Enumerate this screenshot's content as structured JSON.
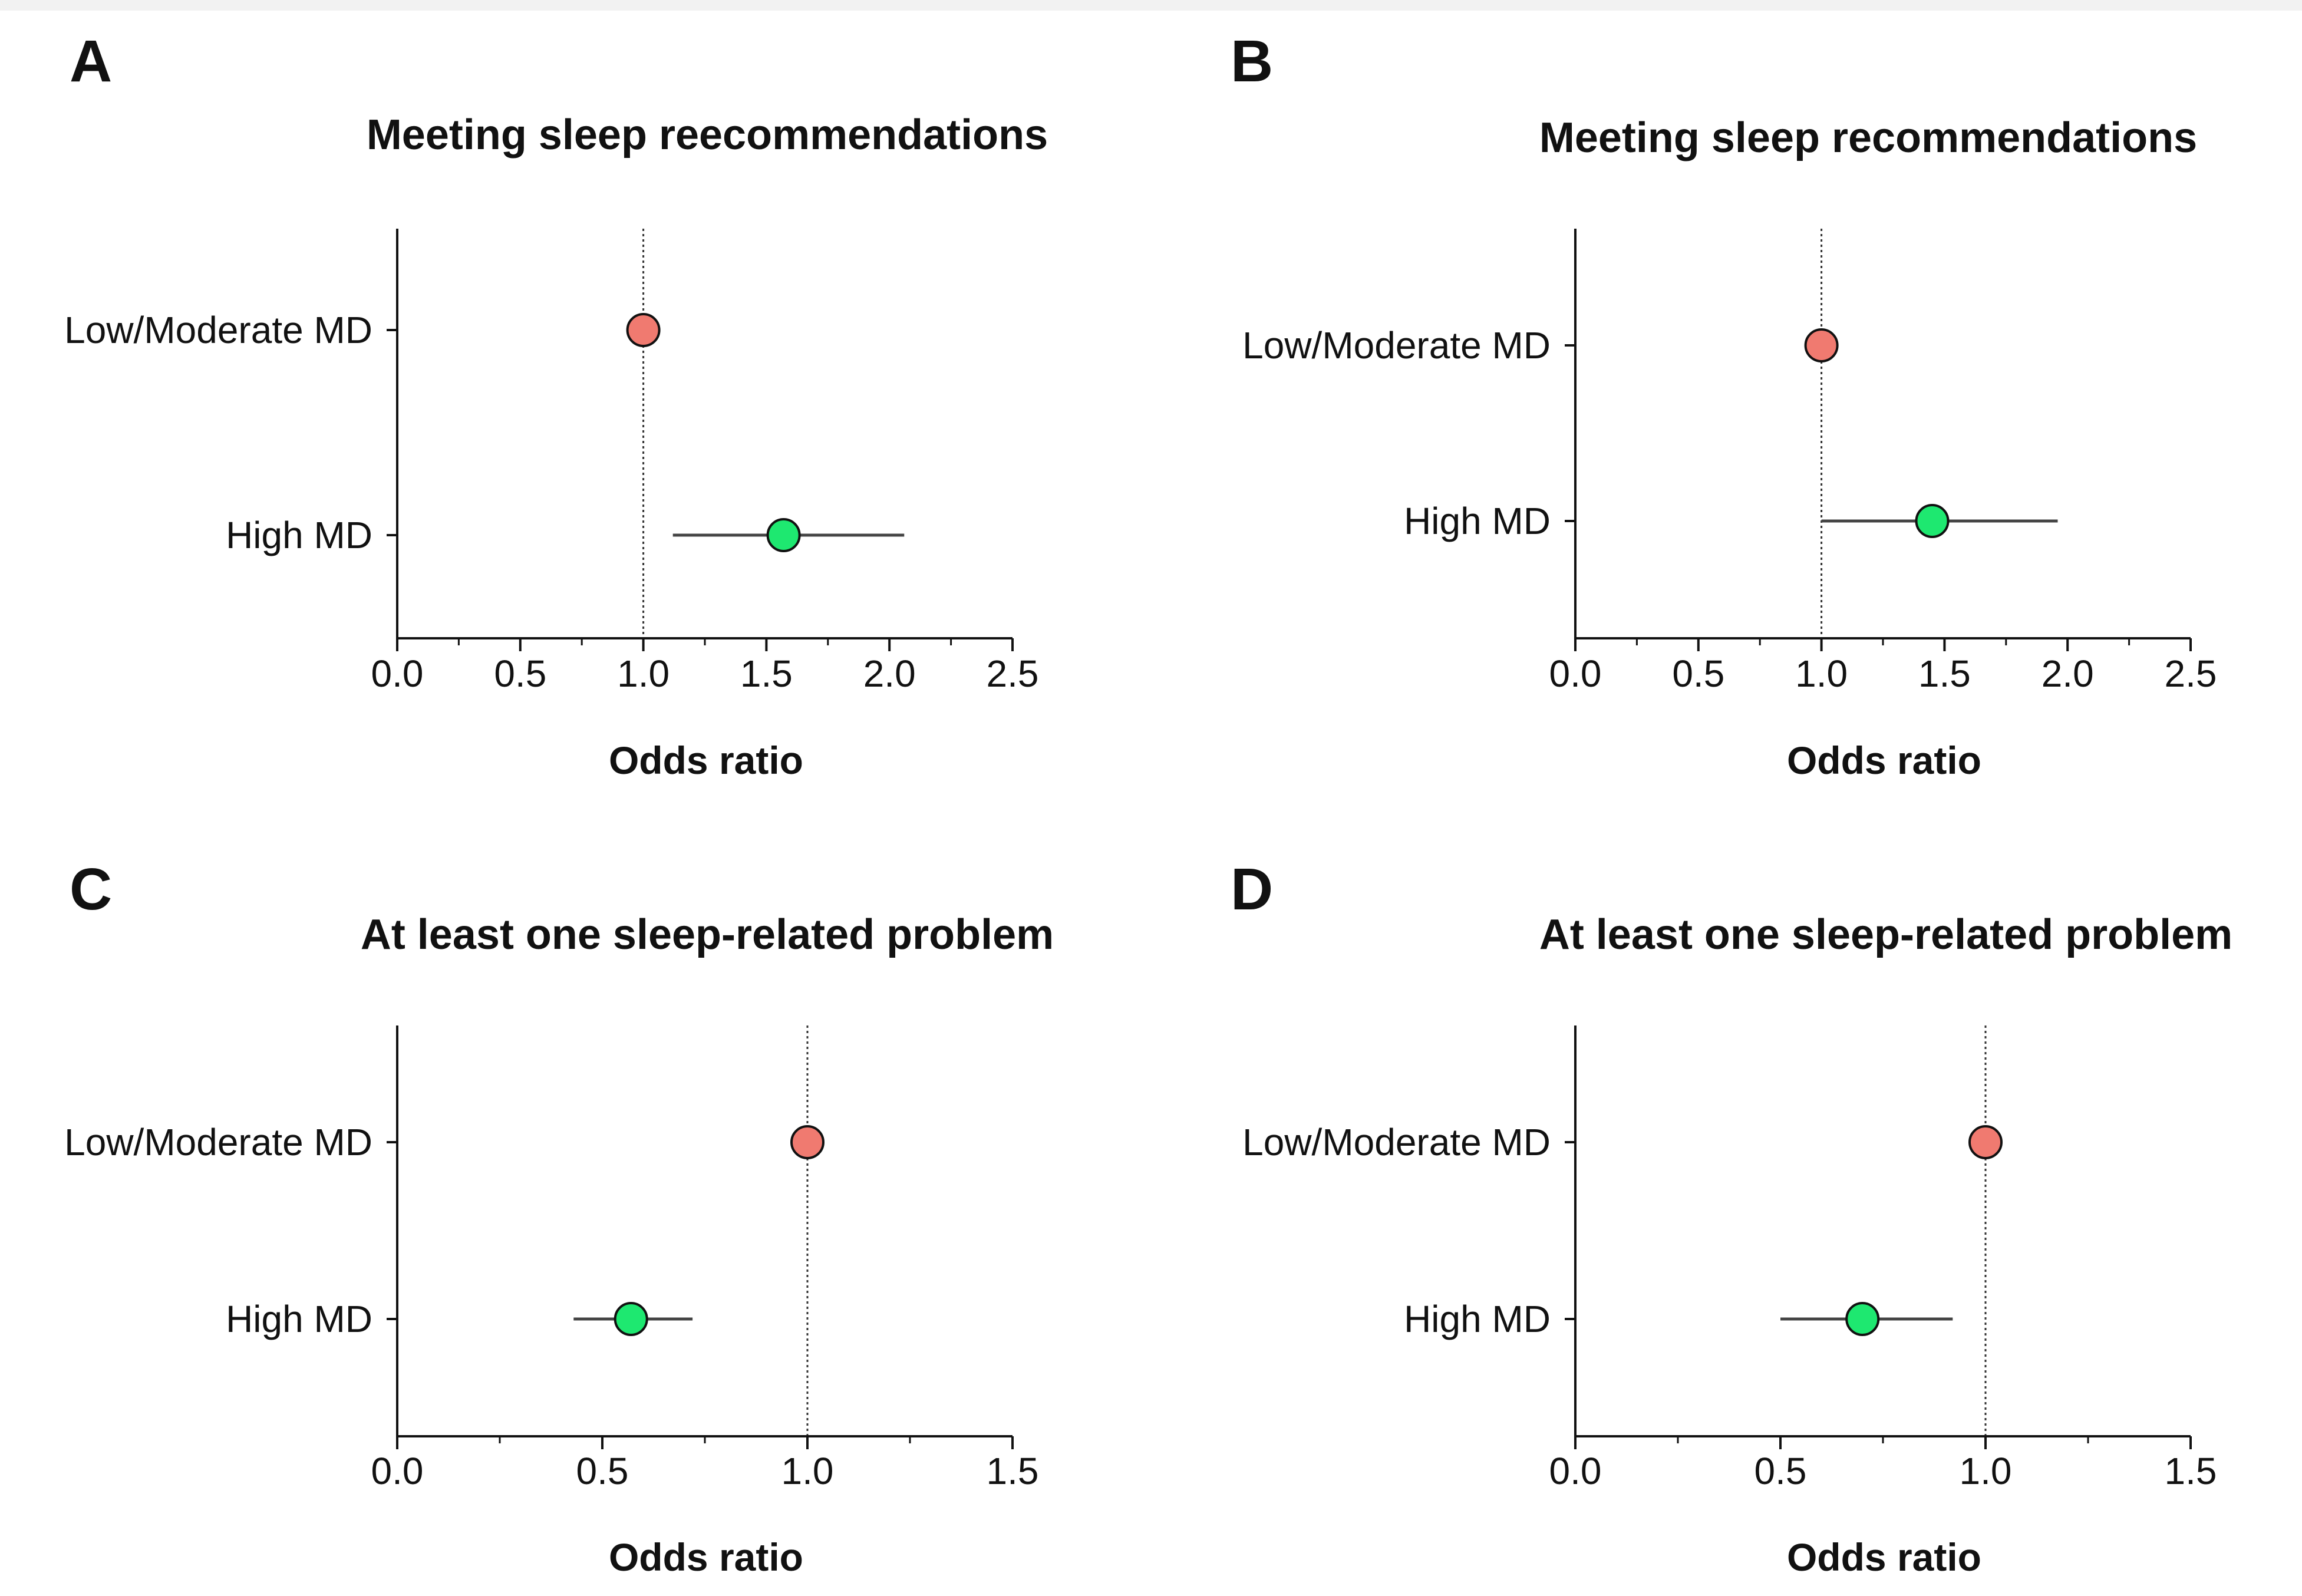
{
  "chart_data": [
    {
      "type": "forest",
      "letter": "A",
      "title": "Meeting sleep reecommendations",
      "xlabel": "Odds ratio",
      "xlim": [
        0,
        2.5
      ],
      "xticks": [
        0.0,
        0.5,
        1.0,
        1.5,
        2.0,
        2.5
      ],
      "xtick_labels": [
        "0.0",
        "0.5",
        "1.0",
        "1.5",
        "2.0",
        "2.5"
      ],
      "minor_step": 0.25,
      "reference_line": 1.0,
      "categories": [
        "Low/Moderate MD",
        "High MD"
      ],
      "estimates": [
        1.0,
        1.57
      ],
      "ci_low": [
        null,
        1.12
      ],
      "ci_high": [
        null,
        2.06
      ],
      "colors": [
        "#f07a70",
        "#1ee870"
      ]
    },
    {
      "type": "forest",
      "letter": "B",
      "title": "Meeting sleep recommendations",
      "xlabel": "Odds ratio",
      "xlim": [
        0,
        2.5
      ],
      "xticks": [
        0.0,
        0.5,
        1.0,
        1.5,
        2.0,
        2.5
      ],
      "xtick_labels": [
        "0.0",
        "0.5",
        "1.0",
        "1.5",
        "2.0",
        "2.5"
      ],
      "minor_step": 0.25,
      "reference_line": 1.0,
      "categories": [
        "Low/Moderate MD",
        "High MD"
      ],
      "estimates": [
        1.0,
        1.45
      ],
      "ci_low": [
        null,
        1.0
      ],
      "ci_high": [
        null,
        1.96
      ],
      "colors": [
        "#f07a70",
        "#1ee870"
      ]
    },
    {
      "type": "forest",
      "letter": "C",
      "title": "At least one sleep-related problem",
      "xlabel": "Odds ratio",
      "xlim": [
        0,
        1.5
      ],
      "xticks": [
        0.0,
        0.5,
        1.0,
        1.5
      ],
      "xtick_labels": [
        "0.0",
        "0.5",
        "1.0",
        "1.5"
      ],
      "minor_step": 0.25,
      "reference_line": 1.0,
      "categories": [
        "Low/Moderate MD",
        "High MD"
      ],
      "estimates": [
        1.0,
        0.57
      ],
      "ci_low": [
        null,
        0.43
      ],
      "ci_high": [
        null,
        0.72
      ],
      "colors": [
        "#f07a70",
        "#1ee870"
      ]
    },
    {
      "type": "forest",
      "letter": "D",
      "title": "At least one sleep-related problem",
      "xlabel": "Odds ratio",
      "xlim": [
        0,
        1.5
      ],
      "xticks": [
        0.0,
        0.5,
        1.0,
        1.5
      ],
      "xtick_labels": [
        "0.0",
        "0.5",
        "1.0",
        "1.5"
      ],
      "minor_step": 0.25,
      "reference_line": 1.0,
      "categories": [
        "Low/Moderate MD",
        "High MD"
      ],
      "estimates": [
        1.0,
        0.7
      ],
      "ci_low": [
        null,
        0.5
      ],
      "ci_high": [
        null,
        0.92
      ],
      "colors": [
        "#f07a70",
        "#1ee870"
      ]
    }
  ]
}
